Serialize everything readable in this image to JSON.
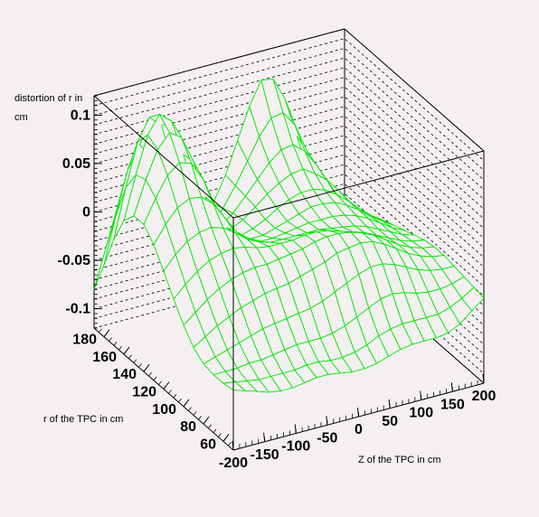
{
  "chart_data": {
    "type": "surface",
    "title": "",
    "zlabel_line1": "distortion of r in",
    "zlabel_line2": "cm",
    "xlabel": "Z of the TPC in cm",
    "ylabel": "r of the TPC in cm",
    "xlim": [
      -200,
      200
    ],
    "ylim": [
      50,
      190
    ],
    "zlim": [
      -0.12,
      0.12
    ],
    "x_ticks": [
      "-200",
      "-150",
      "-100",
      "-50",
      "0",
      "50",
      "100",
      "150",
      "200"
    ],
    "y_ticks": [
      "60",
      "80",
      "100",
      "120",
      "140",
      "160",
      "180"
    ],
    "z_ticks": [
      "-0.1",
      "-0.05",
      "0",
      "0.05",
      "0.1"
    ],
    "grid_x": [
      -200,
      -181,
      -162,
      -143,
      -124,
      -105,
      -86,
      -67,
      -48,
      -29,
      -10,
      10,
      29,
      48,
      67,
      86,
      105,
      124,
      143,
      162,
      181,
      200
    ],
    "grid_y": [
      50,
      60,
      70,
      80,
      90,
      100,
      110,
      120,
      130,
      140,
      150,
      160,
      170,
      180,
      190
    ],
    "z_values": [
      [
        -0.058,
        -0.062,
        -0.066,
        -0.07,
        -0.072,
        -0.072,
        -0.07,
        -0.068,
        -0.068,
        -0.07,
        -0.072,
        -0.072,
        -0.07,
        -0.066,
        -0.062,
        -0.06,
        -0.06,
        -0.06,
        -0.058,
        -0.052,
        -0.042,
        -0.032
      ],
      [
        -0.06,
        -0.062,
        -0.064,
        -0.066,
        -0.066,
        -0.066,
        -0.066,
        -0.064,
        -0.064,
        -0.066,
        -0.066,
        -0.064,
        -0.06,
        -0.054,
        -0.05,
        -0.048,
        -0.048,
        -0.048,
        -0.048,
        -0.044,
        -0.038,
        -0.03
      ],
      [
        -0.06,
        -0.06,
        -0.06,
        -0.058,
        -0.058,
        -0.056,
        -0.054,
        -0.052,
        -0.052,
        -0.052,
        -0.05,
        -0.046,
        -0.04,
        -0.034,
        -0.028,
        -0.026,
        -0.028,
        -0.032,
        -0.034,
        -0.034,
        -0.032,
        -0.028
      ],
      [
        -0.058,
        -0.054,
        -0.05,
        -0.046,
        -0.042,
        -0.038,
        -0.036,
        -0.034,
        -0.032,
        -0.03,
        -0.026,
        -0.02,
        -0.014,
        -0.008,
        -0.004,
        -0.004,
        -0.008,
        -0.014,
        -0.02,
        -0.024,
        -0.026,
        -0.026
      ],
      [
        -0.05,
        -0.042,
        -0.034,
        -0.028,
        -0.022,
        -0.018,
        -0.014,
        -0.012,
        -0.01,
        -0.006,
        -0.002,
        0.002,
        0.008,
        0.01,
        0.012,
        0.01,
        0.004,
        -0.004,
        -0.012,
        -0.018,
        -0.022,
        -0.024
      ],
      [
        -0.036,
        -0.026,
        -0.016,
        -0.008,
        -0.002,
        0.002,
        0.004,
        0.004,
        0.006,
        0.008,
        0.01,
        0.014,
        0.016,
        0.016,
        0.014,
        0.01,
        0.004,
        -0.004,
        -0.012,
        -0.018,
        -0.022,
        -0.024
      ],
      [
        -0.018,
        -0.006,
        0.004,
        0.012,
        0.016,
        0.018,
        0.016,
        0.012,
        0.01,
        0.01,
        0.01,
        0.012,
        0.012,
        0.01,
        0.006,
        0.002,
        -0.002,
        -0.008,
        -0.014,
        -0.02,
        -0.024,
        -0.026
      ],
      [
        0.002,
        0.016,
        0.026,
        0.032,
        0.034,
        0.03,
        0.022,
        0.012,
        0.006,
        0.002,
        0.002,
        0.002,
        0.002,
        0.002,
        0.0,
        -0.002,
        -0.004,
        -0.008,
        -0.014,
        -0.02,
        -0.026,
        -0.03
      ],
      [
        0.02,
        0.038,
        0.052,
        0.058,
        0.056,
        0.046,
        0.028,
        0.01,
        0.0,
        -0.006,
        -0.006,
        -0.004,
        -0.002,
        0.0,
        0.0,
        0.0,
        -0.002,
        -0.006,
        -0.012,
        -0.02,
        -0.028,
        -0.034
      ],
      [
        0.032,
        0.056,
        0.076,
        0.086,
        0.082,
        0.062,
        0.032,
        0.006,
        -0.008,
        -0.012,
        -0.012,
        -0.008,
        -0.004,
        0.0,
        0.004,
        0.004,
        0.002,
        -0.004,
        -0.012,
        -0.022,
        -0.03,
        -0.038
      ],
      [
        0.032,
        0.066,
        0.094,
        0.108,
        0.1,
        0.072,
        0.032,
        0.0,
        -0.014,
        -0.018,
        -0.014,
        -0.008,
        0.0,
        0.006,
        0.01,
        0.01,
        0.006,
        -0.002,
        -0.012,
        -0.024,
        -0.034,
        -0.042
      ],
      [
        0.018,
        0.062,
        0.1,
        0.118,
        0.108,
        0.07,
        0.024,
        -0.008,
        -0.02,
        -0.02,
        -0.014,
        -0.004,
        0.006,
        0.014,
        0.02,
        0.022,
        0.014,
        0.004,
        -0.01,
        -0.026,
        -0.04,
        -0.05
      ],
      [
        -0.01,
        0.04,
        0.084,
        0.106,
        0.094,
        0.052,
        0.006,
        -0.022,
        -0.03,
        -0.026,
        -0.016,
        -0.002,
        0.012,
        0.026,
        0.036,
        0.038,
        0.028,
        0.01,
        -0.012,
        -0.034,
        -0.05,
        -0.062
      ],
      [
        -0.046,
        0.002,
        0.046,
        0.068,
        0.056,
        0.016,
        -0.024,
        -0.044,
        -0.046,
        -0.036,
        -0.02,
        0.0,
        0.022,
        0.044,
        0.06,
        0.062,
        0.046,
        0.016,
        -0.016,
        -0.046,
        -0.066,
        -0.078
      ],
      [
        -0.08,
        -0.04,
        0.0,
        0.02,
        0.012,
        -0.022,
        -0.056,
        -0.068,
        -0.062,
        -0.046,
        -0.024,
        0.002,
        0.034,
        0.066,
        0.09,
        0.088,
        0.064,
        0.022,
        -0.02,
        -0.056,
        -0.08,
        -0.09
      ]
    ],
    "surface_color": "#00e600",
    "frame_color": "#000000",
    "background_color": "#f4f0f2"
  }
}
